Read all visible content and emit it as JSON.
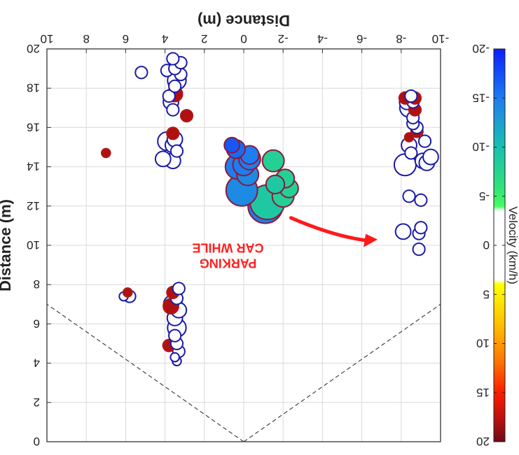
{
  "chart_data": {
    "type": "scatter",
    "title": "",
    "xlabel": "Distance (m)",
    "ylabel": "Distance (m)",
    "colorbar_label": "Velocity (km/h)",
    "xlim": [
      -10,
      10
    ],
    "ylim": [
      0,
      20
    ],
    "x_reversed": true,
    "y_reversed": true,
    "x_ticks": [
      -10,
      -8,
      -6,
      -4,
      -2,
      0,
      2,
      4,
      6,
      8,
      10
    ],
    "x_tick_labels": [
      "-10",
      "-8",
      "-6",
      "-4",
      "-2",
      "0",
      "2",
      "4",
      "6",
      "8",
      "10"
    ],
    "y_ticks": [
      0,
      2,
      4,
      6,
      8,
      10,
      12,
      14,
      16,
      18,
      20
    ],
    "y_tick_labels": [
      "0",
      "2",
      "4",
      "6",
      "8",
      "10",
      "12",
      "14",
      "16",
      "18",
      "20"
    ],
    "grid": true,
    "field_of_view": {
      "apex": [
        0,
        0
      ],
      "left_edge": [
        -10,
        7
      ],
      "right_edge": [
        10,
        7
      ]
    },
    "colorbar": {
      "range": [
        -20,
        20
      ],
      "ticks": [
        -20,
        -15,
        -10,
        -5,
        0,
        5,
        10,
        15,
        20
      ],
      "tick_labels": [
        "-20",
        "-15",
        "-10",
        "-5",
        "0",
        "5",
        "10",
        "15",
        "20"
      ],
      "stops": [
        {
          "v": -20,
          "color": "#0a1fff"
        },
        {
          "v": -15,
          "color": "#1e7df0"
        },
        {
          "v": -10,
          "color": "#18c0b0"
        },
        {
          "v": -6,
          "color": "#30e07a"
        },
        {
          "v": -4,
          "color": "#40ff60"
        },
        {
          "v": -3.5,
          "color": "#ffffff"
        },
        {
          "v": 3.5,
          "color": "#ffffff"
        },
        {
          "v": 4,
          "color": "#ffff00"
        },
        {
          "v": 8,
          "color": "#ffc000"
        },
        {
          "v": 12,
          "color": "#ff7000"
        },
        {
          "v": 15,
          "color": "#ff1a00"
        },
        {
          "v": 18,
          "color": "#b01010"
        },
        {
          "v": 20,
          "color": "#6a0a18"
        }
      ]
    },
    "annotation": {
      "lines": [
        "CAR WHILE",
        "PARKING"
      ],
      "color": "#ff2020",
      "arrow_to": [
        -6.8,
        10.3
      ],
      "arrow_from": [
        -2.4,
        11.4
      ]
    },
    "points": [
      {
        "x": -1.1,
        "y": 12.0,
        "v": -15,
        "s": 9
      },
      {
        "x": -1.2,
        "y": 12.2,
        "v": -9,
        "s": 9
      },
      {
        "x": 0.1,
        "y": 12.8,
        "v": -14,
        "s": 8
      },
      {
        "x": -2.0,
        "y": 12.5,
        "v": -8,
        "s": 5
      },
      {
        "x": -2.3,
        "y": 12.9,
        "v": -8,
        "s": 4
      },
      {
        "x": -2.1,
        "y": 13.4,
        "v": -8,
        "s": 4
      },
      {
        "x": -1.6,
        "y": 13.1,
        "v": -9,
        "s": 4
      },
      {
        "x": -0.2,
        "y": 13.6,
        "v": -14,
        "s": 5
      },
      {
        "x": 0.3,
        "y": 14.0,
        "v": -15,
        "s": 6
      },
      {
        "x": 0.0,
        "y": 14.1,
        "v": -15,
        "s": 5
      },
      {
        "x": -0.3,
        "y": 14.4,
        "v": -15,
        "s": 5
      },
      {
        "x": -1.5,
        "y": 14.3,
        "v": -8,
        "s": 5
      },
      {
        "x": -0.3,
        "y": 14.6,
        "v": -15,
        "s": 4
      },
      {
        "x": 0.4,
        "y": 14.9,
        "v": -16,
        "s": 4
      },
      {
        "x": 0.6,
        "y": 15.1,
        "v": -17,
        "s": 3
      },
      {
        "x": 3.4,
        "y": 4.1,
        "v": 0,
        "s": 1
      },
      {
        "x": 3.5,
        "y": 4.3,
        "v": 0,
        "s": 1
      },
      {
        "x": 3.3,
        "y": 4.6,
        "v": 0,
        "s": 2
      },
      {
        "x": 3.8,
        "y": 4.9,
        "v": 18,
        "s": 2
      },
      {
        "x": 3.4,
        "y": 5.0,
        "v": 0,
        "s": 2
      },
      {
        "x": 3.5,
        "y": 5.4,
        "v": 0,
        "s": 2
      },
      {
        "x": 3.4,
        "y": 5.8,
        "v": 0,
        "s": 4
      },
      {
        "x": 3.5,
        "y": 6.3,
        "v": 0,
        "s": 3
      },
      {
        "x": 3.3,
        "y": 6.7,
        "v": 0,
        "s": 3
      },
      {
        "x": 3.7,
        "y": 6.9,
        "v": 18,
        "s": 3
      },
      {
        "x": 3.6,
        "y": 7.0,
        "v": 0,
        "s": 4
      },
      {
        "x": 3.4,
        "y": 7.3,
        "v": 0,
        "s": 2
      },
      {
        "x": 3.6,
        "y": 7.6,
        "v": 18,
        "s": 2
      },
      {
        "x": 3.3,
        "y": 7.8,
        "v": 0,
        "s": 2
      },
      {
        "x": 5.8,
        "y": 7.4,
        "v": 0,
        "s": 2
      },
      {
        "x": 6.1,
        "y": 7.4,
        "v": 0,
        "s": 1
      },
      {
        "x": 5.9,
        "y": 7.6,
        "v": 18,
        "s": 1
      },
      {
        "x": 3.6,
        "y": 14.3,
        "v": 0,
        "s": 3
      },
      {
        "x": 4.1,
        "y": 14.4,
        "v": 0,
        "s": 3
      },
      {
        "x": 3.4,
        "y": 14.8,
        "v": 0,
        "s": 2
      },
      {
        "x": 3.6,
        "y": 15.1,
        "v": 0,
        "s": 3
      },
      {
        "x": 3.9,
        "y": 15.3,
        "v": 0,
        "s": 4
      },
      {
        "x": 3.5,
        "y": 15.4,
        "v": 0,
        "s": 3
      },
      {
        "x": 3.6,
        "y": 15.7,
        "v": 18,
        "s": 2
      },
      {
        "x": 2.9,
        "y": 16.6,
        "v": 18,
        "s": 2
      },
      {
        "x": 3.6,
        "y": 16.9,
        "v": 0,
        "s": 2
      },
      {
        "x": 3.7,
        "y": 17.3,
        "v": 0,
        "s": 3
      },
      {
        "x": 3.5,
        "y": 17.7,
        "v": 18,
        "s": 3
      },
      {
        "x": 3.8,
        "y": 17.6,
        "v": 0,
        "s": 2
      },
      {
        "x": 3.5,
        "y": 18.1,
        "v": 0,
        "s": 2
      },
      {
        "x": 3.4,
        "y": 18.4,
        "v": 0,
        "s": 4
      },
      {
        "x": 3.2,
        "y": 18.7,
        "v": 0,
        "s": 2
      },
      {
        "x": 3.9,
        "y": 18.9,
        "v": 0,
        "s": 2
      },
      {
        "x": 3.5,
        "y": 19.0,
        "v": 0,
        "s": 2
      },
      {
        "x": 3.2,
        "y": 19.3,
        "v": 0,
        "s": 2
      },
      {
        "x": 3.6,
        "y": 19.5,
        "v": 0,
        "s": 2
      },
      {
        "x": 5.2,
        "y": 18.8,
        "v": 0,
        "s": 2
      },
      {
        "x": 7.0,
        "y": 14.7,
        "v": 18,
        "s": 1
      },
      {
        "x": -8.9,
        "y": 9.8,
        "v": 0,
        "s": 2
      },
      {
        "x": -8.9,
        "y": 10.6,
        "v": 0,
        "s": 2
      },
      {
        "x": -9.0,
        "y": 10.9,
        "v": 0,
        "s": 2
      },
      {
        "x": -8.1,
        "y": 10.7,
        "v": 0,
        "s": 3
      },
      {
        "x": -9.0,
        "y": 12.3,
        "v": 0,
        "s": 2
      },
      {
        "x": -8.4,
        "y": 12.5,
        "v": 0,
        "s": 2
      },
      {
        "x": -8.2,
        "y": 14.1,
        "v": 0,
        "s": 5
      },
      {
        "x": -9.1,
        "y": 14.3,
        "v": 0,
        "s": 3
      },
      {
        "x": -9.3,
        "y": 14.2,
        "v": 0,
        "s": 3
      },
      {
        "x": -9.5,
        "y": 14.5,
        "v": 0,
        "s": 3
      },
      {
        "x": -8.5,
        "y": 14.7,
        "v": 0,
        "s": 2
      },
      {
        "x": -8.4,
        "y": 15.1,
        "v": 0,
        "s": 3
      },
      {
        "x": -9.2,
        "y": 15.3,
        "v": 0,
        "s": 2
      },
      {
        "x": -8.4,
        "y": 15.5,
        "v": 18,
        "s": 1
      },
      {
        "x": -8.8,
        "y": 15.8,
        "v": 18,
        "s": 2
      },
      {
        "x": -8.8,
        "y": 16.0,
        "v": 0,
        "s": 2
      },
      {
        "x": -8.6,
        "y": 16.2,
        "v": 0,
        "s": 2
      },
      {
        "x": -8.6,
        "y": 16.5,
        "v": 0,
        "s": 2
      },
      {
        "x": -8.7,
        "y": 16.9,
        "v": 18,
        "s": 2
      },
      {
        "x": -8.4,
        "y": 17.0,
        "v": 0,
        "s": 4
      },
      {
        "x": -8.6,
        "y": 17.3,
        "v": 0,
        "s": 2
      },
      {
        "x": -8.7,
        "y": 17.5,
        "v": 18,
        "s": 2
      },
      {
        "x": -8.2,
        "y": 17.5,
        "v": 18,
        "s": 2
      },
      {
        "x": -8.3,
        "y": 17.3,
        "v": 0,
        "s": 3
      },
      {
        "x": -8.5,
        "y": 17.6,
        "v": 0,
        "s": 2
      }
    ]
  }
}
